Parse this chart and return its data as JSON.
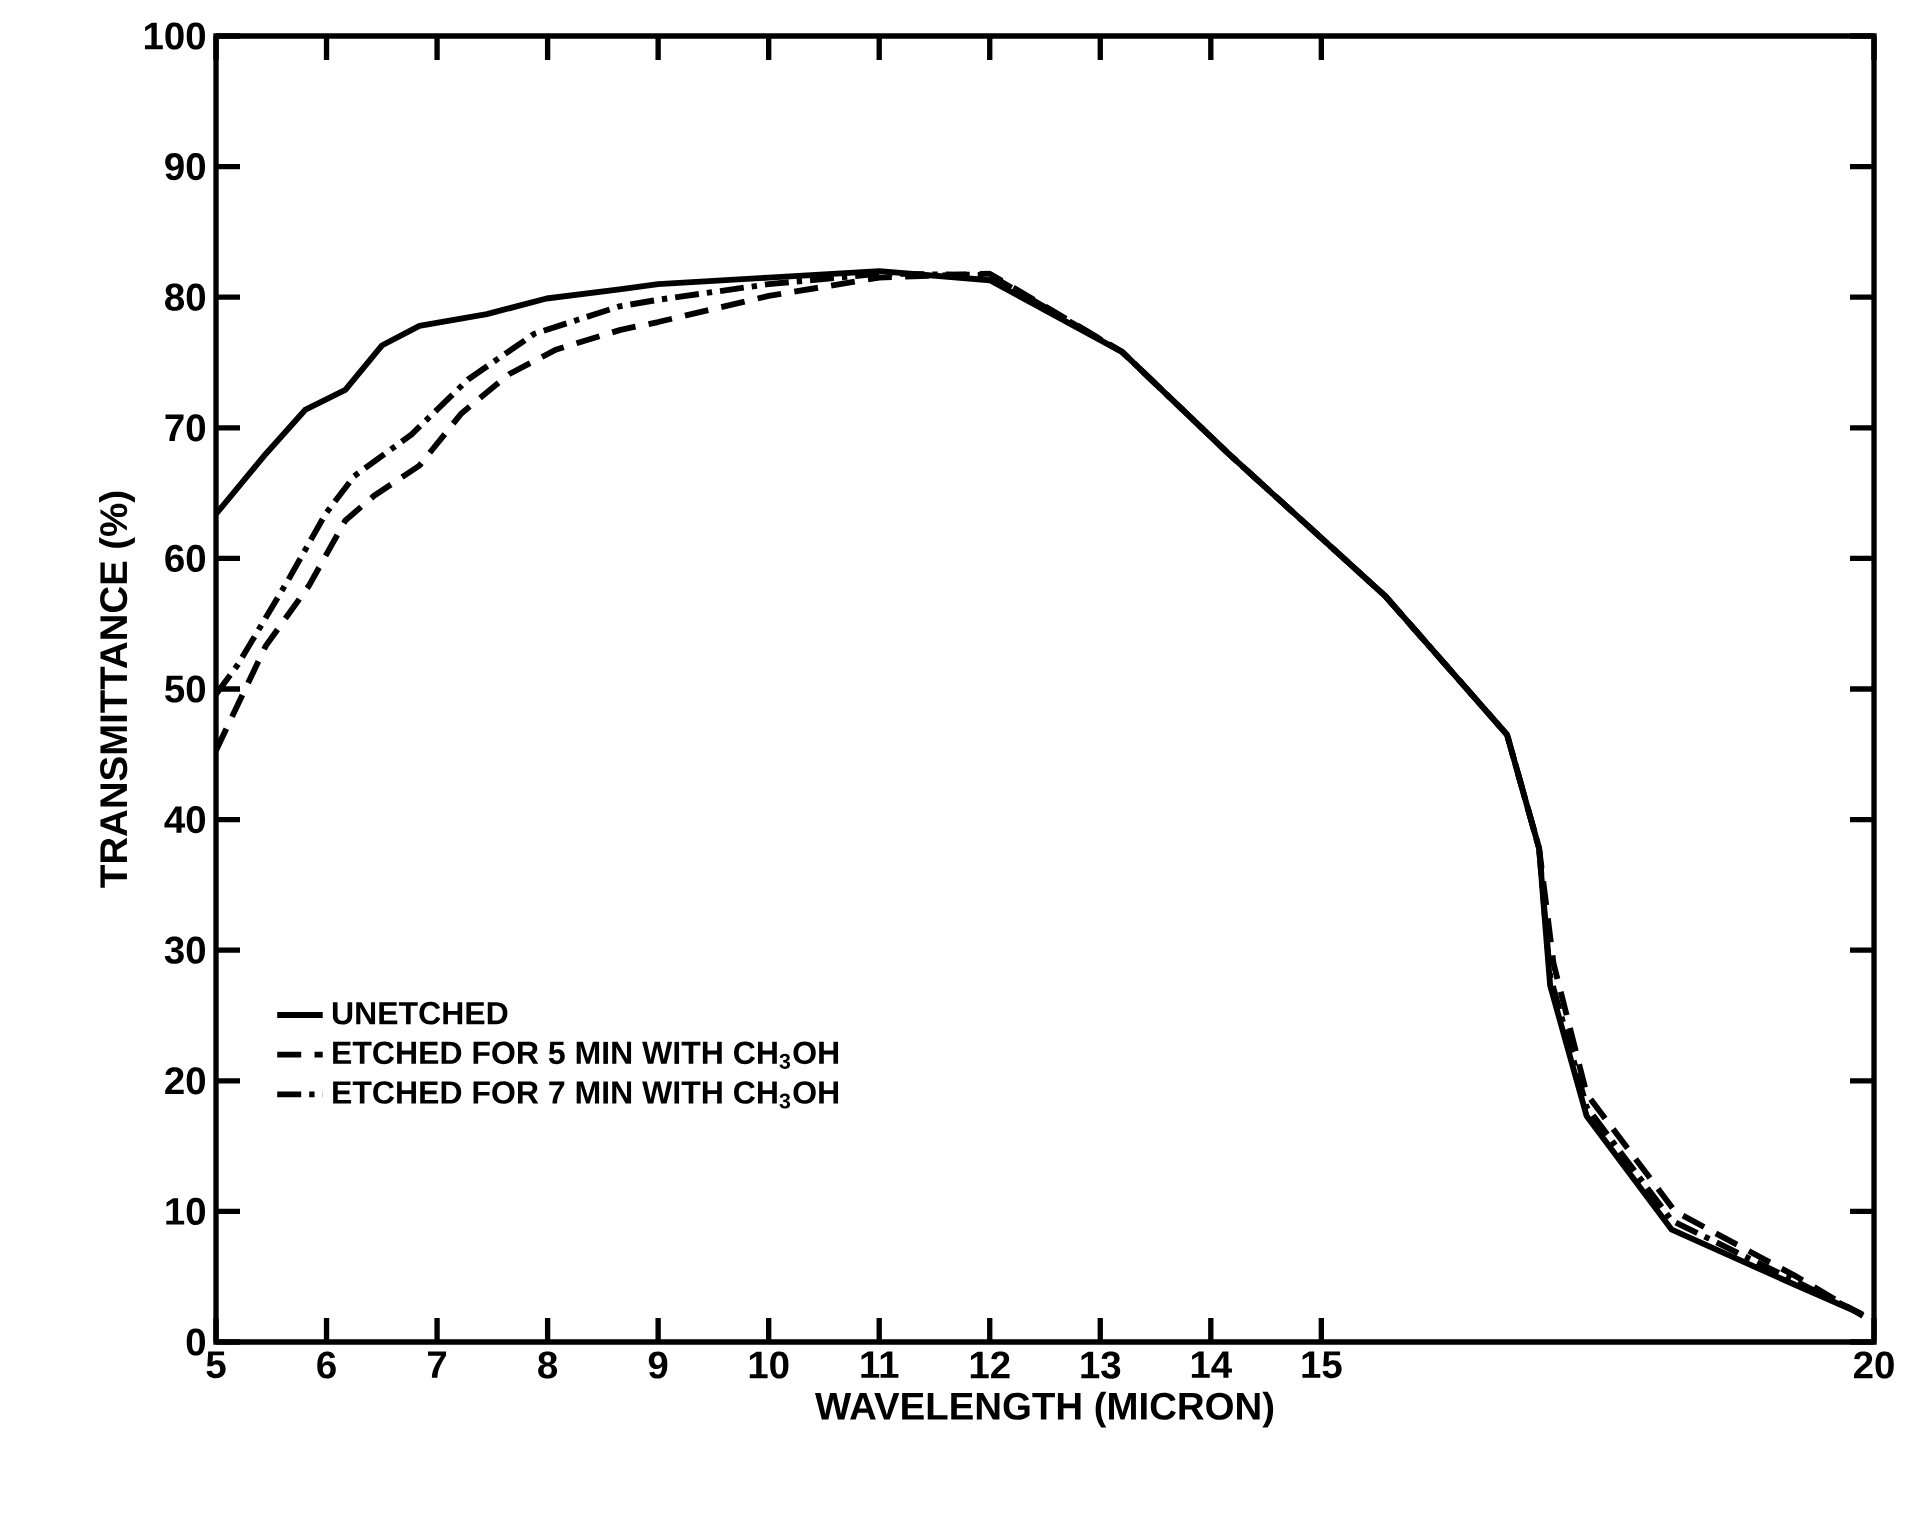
{
  "chart_data": {
    "type": "line",
    "xlabel": "WAVELENGTH (MICRON)",
    "ylabel": "TRANSMITTANCE (%)",
    "xlim": [
      5,
      20
    ],
    "xticks": [
      5,
      6,
      7,
      8,
      9,
      10,
      11,
      12,
      13,
      14,
      15,
      20
    ],
    "ylim": [
      0,
      100
    ],
    "yticks": [
      0,
      10,
      20,
      30,
      40,
      50,
      60,
      70,
      80,
      90,
      100
    ],
    "grid": false,
    "legend": "center left",
    "marker": "none",
    "series": [
      {
        "name": "UNETCHED",
        "color": "#000000",
        "line_style": "solid",
        "x": [
          5,
          5.45,
          5.81,
          6.17,
          6.5,
          6.84,
          7.45,
          7.99,
          8.65,
          9,
          10,
          11,
          12,
          13.2,
          14.15,
          15.58,
          16.68,
          16.97,
          17.07,
          17.4,
          18.17,
          19.28,
          19.9
        ],
        "values": [
          63.4,
          68,
          71.4,
          72.9,
          76.3,
          77.8,
          78.7,
          79.9,
          80.6,
          81,
          81.5,
          82,
          81.3,
          75.8,
          68.1,
          57.1,
          46.5,
          37.8,
          27.3,
          17.3,
          8.6,
          4.4,
          2.1
        ]
      },
      {
        "name": "ETCHED FOR 5 MIN WITH CH$_{3}$OH",
        "color": "#000000",
        "line_style": "dashed",
        "x": [
          5,
          5.45,
          5.84,
          6.17,
          6.43,
          6.84,
          7.22,
          7.65,
          8.08,
          8.66,
          9,
          10,
          11,
          12,
          13.2,
          14.15,
          15.58,
          16.68,
          16.97,
          17.1,
          17.4,
          18.2,
          19.3,
          19.9
        ],
        "values": [
          45.3,
          53.3,
          57.9,
          62.9,
          64.8,
          67.1,
          71.1,
          74.1,
          76,
          77.5,
          78.1,
          80.1,
          81.5,
          81.8,
          75.8,
          68.1,
          57.1,
          46.5,
          37.8,
          29,
          19,
          10,
          5,
          2
        ]
      },
      {
        "name": "ETCHED FOR 7 MIN WITH CH$_{3}$OH",
        "color": "#000000",
        "line_style": "dashdot",
        "x": [
          5,
          5.2,
          5.65,
          5.99,
          6.25,
          6.77,
          7.28,
          7.88,
          8.65,
          9,
          10,
          11,
          12,
          13.2,
          14.15,
          15.58,
          16.68,
          16.97,
          17.07,
          17.4,
          18.17,
          19.28,
          19.9
        ],
        "values": [
          49.6,
          51.9,
          58.3,
          63.4,
          66.3,
          69.5,
          73.7,
          77.2,
          79.3,
          79.8,
          81,
          81.8,
          81.7,
          75.8,
          68.1,
          57.1,
          46.5,
          37.8,
          28,
          18,
          9.3,
          4.7,
          2.1
        ]
      }
    ]
  }
}
